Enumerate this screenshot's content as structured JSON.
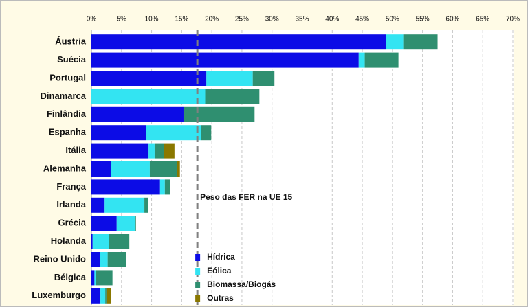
{
  "chart_data": {
    "type": "stacked-bar-horizontal",
    "categories": [
      "Áustria",
      "Suécia",
      "Portugal",
      "Dinamarca",
      "Finlândia",
      "Espanha",
      "Itália",
      "Alemanha",
      "França",
      "Irlanda",
      "Grécia",
      "Holanda",
      "Reino Unido",
      "Bélgica",
      "Luxemburgo"
    ],
    "series": [
      {
        "name": "Hídrica",
        "color": "#0c0ce6",
        "values": [
          48.9,
          44.4,
          19.1,
          0,
          15.3,
          9.1,
          9.5,
          3.2,
          11.4,
          2.2,
          4.2,
          0.2,
          1.4,
          0.5,
          1.5
        ]
      },
      {
        "name": "Eólica",
        "color": "#33e4f2",
        "values": [
          2.9,
          1.0,
          7.7,
          18.9,
          0,
          9.1,
          1.0,
          6.5,
          0.8,
          6.6,
          3.0,
          2.7,
          1.3,
          0.3,
          0.8
        ]
      },
      {
        "name": "Biomassa/Biogás",
        "color": "#2f8f70",
        "values": [
          5.7,
          5.6,
          3.6,
          9.0,
          11.8,
          1.7,
          1.6,
          4.5,
          0.9,
          0.6,
          0.2,
          3.4,
          3.1,
          2.7,
          0.2
        ]
      },
      {
        "name": "Outras",
        "color": "#8a7800",
        "values": [
          0,
          0,
          0,
          0,
          0,
          0,
          1.7,
          0.5,
          0,
          0,
          0,
          0,
          0,
          0,
          0.8
        ]
      }
    ],
    "xlim": [
      0,
      70
    ],
    "xticks": [
      {
        "value": 0,
        "label": "0%"
      },
      {
        "value": 5,
        "label": "5%"
      },
      {
        "value": 10,
        "label": "10%"
      },
      {
        "value": 15,
        "label": "15%"
      },
      {
        "value": 20,
        "label": "20%"
      },
      {
        "value": 25,
        "label": "25%"
      },
      {
        "value": 30,
        "label": "30%"
      },
      {
        "value": 35,
        "label": "35%"
      },
      {
        "value": 40,
        "label": "40%"
      },
      {
        "value": 45,
        "label": "45%"
      },
      {
        "value": 50,
        "label": "50%"
      },
      {
        "value": 55,
        "label": "55%"
      },
      {
        "value": 60,
        "label": "60%"
      },
      {
        "value": 65,
        "label": "65%"
      },
      {
        "value": 70,
        "label": "70%"
      }
    ],
    "grid": true,
    "reference_line": {
      "value": 17.6,
      "label": "Peso das FER na UE 15"
    }
  }
}
